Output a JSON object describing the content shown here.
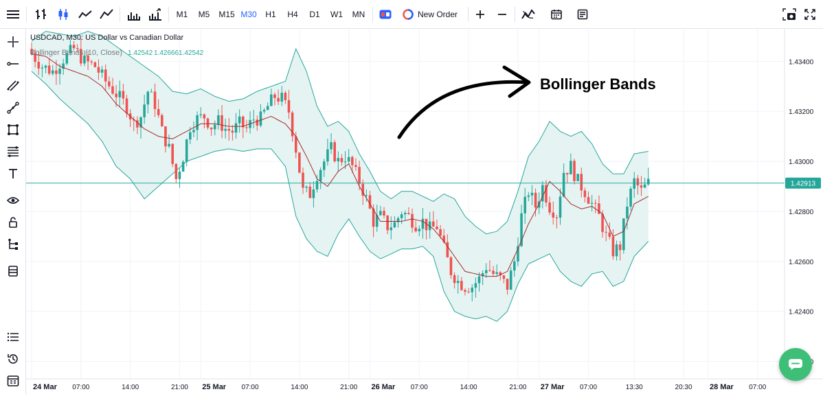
{
  "toolbar": {
    "menu_icon": "hamburger-icon",
    "chart_type_icons": [
      "bars-icon",
      "candles-icon",
      "line-icon",
      "area-icon",
      "volume-icon",
      "indicators-volume-icon"
    ],
    "timeframes": [
      "M1",
      "M5",
      "M15",
      "M30",
      "H1",
      "H4",
      "D1",
      "W1",
      "MN"
    ],
    "active_timeframe": "M30",
    "new_order_label": "New Order",
    "right_icons": [
      "snapshot-icon",
      "fullscreen-icon"
    ]
  },
  "sidebar": {
    "top_tools": [
      "crosshair-icon",
      "horizontal-line-icon",
      "parallel-lines-icon",
      "trend-line-icon",
      "shapes-icon",
      "fibonacci-icon",
      "text-icon",
      "eye-icon",
      "lock-icon",
      "tree-icon",
      "layers-icon"
    ],
    "bottom_tools": [
      "list-icon",
      "history-icon",
      "calendar-grid-icon"
    ]
  },
  "colors": {
    "up": "#26a69a",
    "down": "#ef5350",
    "band_fill": "#e0f2f1",
    "band_line": "#26a69a",
    "middle_line": "#a52a2a",
    "price_line": "#26a69a",
    "accent": "#2962ff",
    "chat": "#3dbf77"
  },
  "chart_data": {
    "type": "candlestick",
    "symbol_legend": "USDCAD, M30: US Dollar vs Canadian Dollar",
    "indicator_legend": {
      "label": "Bollinger Bands (10, Close)",
      "values": [
        "1.42542",
        "1.42666",
        "1.42542"
      ]
    },
    "annotation": "Bollinger Bands",
    "current_price": 1.42913,
    "ylim": [
      1.4213,
      1.4353
    ],
    "y_ticks": [
      "1.43400",
      "1.43200",
      "1.43000",
      "1.42800",
      "1.42600",
      "1.42400",
      "1.42200"
    ],
    "y_tick_values": [
      1.434,
      1.432,
      1.43,
      1.428,
      1.426,
      1.424,
      1.422
    ],
    "x_ticks": [
      {
        "label": "24 Mar",
        "bold": true,
        "bar": 0
      },
      {
        "label": "07:00",
        "bold": false,
        "bar": 14
      },
      {
        "label": "14:00",
        "bold": false,
        "bar": 28
      },
      {
        "label": "21:00",
        "bold": false,
        "bar": 42
      },
      {
        "label": "25 Mar",
        "bold": true,
        "bar": 48
      },
      {
        "label": "07:00",
        "bold": false,
        "bar": 62
      },
      {
        "label": "14:00",
        "bold": false,
        "bar": 76
      },
      {
        "label": "21:00",
        "bold": false,
        "bar": 90
      },
      {
        "label": "26 Mar",
        "bold": true,
        "bar": 96
      },
      {
        "label": "07:00",
        "bold": false,
        "bar": 110
      },
      {
        "label": "14:00",
        "bold": false,
        "bar": 124
      },
      {
        "label": "21:00",
        "bold": false,
        "bar": 138
      },
      {
        "label": "27 Mar",
        "bold": true,
        "bar": 144
      },
      {
        "label": "07:00",
        "bold": false,
        "bar": 158
      },
      {
        "label": "13:30",
        "bold": false,
        "bar": 171
      },
      {
        "label": "20:30",
        "bold": false,
        "bar": 185
      },
      {
        "label": "28 Mar",
        "bold": true,
        "bar": 192
      },
      {
        "label": "07:00",
        "bold": false,
        "bar": 206
      }
    ],
    "close_path": [
      [
        0,
        1.4343
      ],
      [
        3,
        1.4338
      ],
      [
        6,
        1.4336
      ],
      [
        9,
        1.4341
      ],
      [
        12,
        1.4345
      ],
      [
        15,
        1.434
      ],
      [
        18,
        1.4338
      ],
      [
        21,
        1.4332
      ],
      [
        24,
        1.4327
      ],
      [
        27,
        1.4322
      ],
      [
        29,
        1.4315
      ],
      [
        31,
        1.4318
      ],
      [
        33,
        1.4328
      ],
      [
        35,
        1.4323
      ],
      [
        37,
        1.4312
      ],
      [
        39,
        1.4305
      ],
      [
        41,
        1.4293
      ],
      [
        43,
        1.4302
      ],
      [
        45,
        1.4314
      ],
      [
        47,
        1.4317
      ],
      [
        49,
        1.4318
      ],
      [
        51,
        1.4314
      ],
      [
        53,
        1.4316
      ],
      [
        55,
        1.4313
      ],
      [
        57,
        1.4312
      ],
      [
        59,
        1.4315
      ],
      [
        61,
        1.4313
      ],
      [
        63,
        1.4317
      ],
      [
        65,
        1.4317
      ],
      [
        67,
        1.4322
      ],
      [
        69,
        1.4326
      ],
      [
        71,
        1.4325
      ],
      [
        73,
        1.432
      ],
      [
        75,
        1.4305
      ],
      [
        77,
        1.4288
      ],
      [
        79,
        1.4287
      ],
      [
        81,
        1.4295
      ],
      [
        83,
        1.43
      ],
      [
        85,
        1.4305
      ],
      [
        87,
        1.43
      ],
      [
        89,
        1.4302
      ],
      [
        91,
        1.4298
      ],
      [
        93,
        1.4292
      ],
      [
        95,
        1.4285
      ],
      [
        97,
        1.4276
      ],
      [
        99,
        1.4278
      ],
      [
        101,
        1.4274
      ],
      [
        103,
        1.4275
      ],
      [
        105,
        1.428
      ],
      [
        107,
        1.4278
      ],
      [
        109,
        1.4275
      ],
      [
        111,
        1.4276
      ],
      [
        113,
        1.4273
      ],
      [
        115,
        1.4274
      ],
      [
        117,
        1.4265
      ],
      [
        119,
        1.4256
      ],
      [
        121,
        1.4252
      ],
      [
        123,
        1.425
      ],
      [
        125,
        1.425
      ],
      [
        127,
        1.4253
      ],
      [
        129,
        1.4258
      ],
      [
        131,
        1.4255
      ],
      [
        133,
        1.4253
      ],
      [
        135,
        1.425
      ],
      [
        137,
        1.426
      ],
      [
        139,
        1.4278
      ],
      [
        141,
        1.4288
      ],
      [
        143,
        1.4282
      ],
      [
        145,
        1.429
      ],
      [
        147,
        1.4282
      ],
      [
        149,
        1.4279
      ],
      [
        151,
        1.4296
      ],
      [
        153,
        1.4298
      ],
      [
        155,
        1.4292
      ],
      [
        157,
        1.4288
      ],
      [
        159,
        1.4283
      ],
      [
        161,
        1.4278
      ],
      [
        163,
        1.427
      ],
      [
        165,
        1.4264
      ],
      [
        167,
        1.4266
      ],
      [
        169,
        1.4283
      ],
      [
        171,
        1.4292
      ],
      [
        173,
        1.4288
      ],
      [
        175,
        1.42913
      ]
    ],
    "upper_band_path": [
      [
        0,
        1.4348
      ],
      [
        4,
        1.4352
      ],
      [
        8,
        1.4351
      ],
      [
        12,
        1.435
      ],
      [
        16,
        1.4352
      ],
      [
        20,
        1.435
      ],
      [
        24,
        1.4346
      ],
      [
        28,
        1.4342
      ],
      [
        32,
        1.4338
      ],
      [
        36,
        1.4334
      ],
      [
        40,
        1.4328
      ],
      [
        44,
        1.4327
      ],
      [
        48,
        1.4329
      ],
      [
        52,
        1.4326
      ],
      [
        56,
        1.4324
      ],
      [
        60,
        1.4325
      ],
      [
        64,
        1.4328
      ],
      [
        68,
        1.433
      ],
      [
        72,
        1.4332
      ],
      [
        75,
        1.4345
      ],
      [
        78,
        1.4336
      ],
      [
        81,
        1.4322
      ],
      [
        84,
        1.4314
      ],
      [
        87,
        1.4316
      ],
      [
        90,
        1.4312
      ],
      [
        93,
        1.4303
      ],
      [
        96,
        1.4296
      ],
      [
        99,
        1.4288
      ],
      [
        102,
        1.4285
      ],
      [
        105,
        1.4288
      ],
      [
        108,
        1.4288
      ],
      [
        111,
        1.4286
      ],
      [
        114,
        1.4284
      ],
      [
        117,
        1.4287
      ],
      [
        120,
        1.4285
      ],
      [
        123,
        1.4278
      ],
      [
        126,
        1.4274
      ],
      [
        129,
        1.4271
      ],
      [
        132,
        1.4272
      ],
      [
        135,
        1.4276
      ],
      [
        138,
        1.4288
      ],
      [
        141,
        1.4302
      ],
      [
        144,
        1.4308
      ],
      [
        147,
        1.4316
      ],
      [
        150,
        1.4312
      ],
      [
        153,
        1.431
      ],
      [
        156,
        1.4312
      ],
      [
        159,
        1.4307
      ],
      [
        162,
        1.4299
      ],
      [
        165,
        1.4295
      ],
      [
        168,
        1.4295
      ],
      [
        171,
        1.4303
      ],
      [
        175,
        1.4304
      ]
    ],
    "lower_band_path": [
      [
        0,
        1.4336
      ],
      [
        4,
        1.4331
      ],
      [
        8,
        1.4325
      ],
      [
        12,
        1.432
      ],
      [
        16,
        1.4315
      ],
      [
        20,
        1.4308
      ],
      [
        24,
        1.4298
      ],
      [
        28,
        1.4293
      ],
      [
        32,
        1.4285
      ],
      [
        36,
        1.429
      ],
      [
        40,
        1.4295
      ],
      [
        44,
        1.43
      ],
      [
        48,
        1.4302
      ],
      [
        52,
        1.4304
      ],
      [
        56,
        1.4305
      ],
      [
        60,
        1.4304
      ],
      [
        64,
        1.4305
      ],
      [
        68,
        1.4305
      ],
      [
        72,
        1.4298
      ],
      [
        75,
        1.4278
      ],
      [
        78,
        1.4269
      ],
      [
        81,
        1.4264
      ],
      [
        84,
        1.4262
      ],
      [
        87,
        1.4271
      ],
      [
        90,
        1.4277
      ],
      [
        93,
        1.427
      ],
      [
        96,
        1.4264
      ],
      [
        99,
        1.4261
      ],
      [
        102,
        1.4263
      ],
      [
        105,
        1.4265
      ],
      [
        108,
        1.4265
      ],
      [
        111,
        1.4266
      ],
      [
        114,
        1.4262
      ],
      [
        117,
        1.4248
      ],
      [
        120,
        1.424
      ],
      [
        123,
        1.4238
      ],
      [
        126,
        1.4237
      ],
      [
        129,
        1.4238
      ],
      [
        132,
        1.4236
      ],
      [
        135,
        1.424
      ],
      [
        138,
        1.4251
      ],
      [
        141,
        1.4259
      ],
      [
        144,
        1.4261
      ],
      [
        147,
        1.4263
      ],
      [
        150,
        1.4256
      ],
      [
        153,
        1.4252
      ],
      [
        156,
        1.425
      ],
      [
        159,
        1.4255
      ],
      [
        162,
        1.4256
      ],
      [
        165,
        1.425
      ],
      [
        168,
        1.4252
      ],
      [
        171,
        1.4262
      ],
      [
        175,
        1.4268
      ]
    ],
    "middle_band_path": [
      [
        0,
        1.4343
      ],
      [
        4,
        1.4342
      ],
      [
        8,
        1.4338
      ],
      [
        12,
        1.4336
      ],
      [
        16,
        1.4334
      ],
      [
        20,
        1.433
      ],
      [
        24,
        1.4323
      ],
      [
        28,
        1.4318
      ],
      [
        32,
        1.4313
      ],
      [
        36,
        1.431
      ],
      [
        40,
        1.4309
      ],
      [
        44,
        1.4312
      ],
      [
        48,
        1.4315
      ],
      [
        52,
        1.4315
      ],
      [
        56,
        1.4314
      ],
      [
        60,
        1.4314
      ],
      [
        64,
        1.4316
      ],
      [
        68,
        1.4318
      ],
      [
        72,
        1.4315
      ],
      [
        75,
        1.431
      ],
      [
        78,
        1.4302
      ],
      [
        81,
        1.4293
      ],
      [
        84,
        1.429
      ],
      [
        87,
        1.4296
      ],
      [
        90,
        1.4299
      ],
      [
        93,
        1.429
      ],
      [
        96,
        1.4283
      ],
      [
        99,
        1.4276
      ],
      [
        102,
        1.4276
      ],
      [
        105,
        1.4276
      ],
      [
        108,
        1.4277
      ],
      [
        111,
        1.4276
      ],
      [
        114,
        1.4273
      ],
      [
        117,
        1.4268
      ],
      [
        120,
        1.4262
      ],
      [
        123,
        1.4256
      ],
      [
        126,
        1.4255
      ],
      [
        129,
        1.4254
      ],
      [
        132,
        1.4254
      ],
      [
        135,
        1.4256
      ],
      [
        138,
        1.4265
      ],
      [
        141,
        1.4275
      ],
      [
        144,
        1.4283
      ],
      [
        147,
        1.4292
      ],
      [
        150,
        1.4288
      ],
      [
        153,
        1.4283
      ],
      [
        156,
        1.4281
      ],
      [
        159,
        1.4282
      ],
      [
        162,
        1.4279
      ],
      [
        165,
        1.427
      ],
      [
        168,
        1.4272
      ],
      [
        171,
        1.4283
      ],
      [
        175,
        1.4286
      ]
    ]
  }
}
